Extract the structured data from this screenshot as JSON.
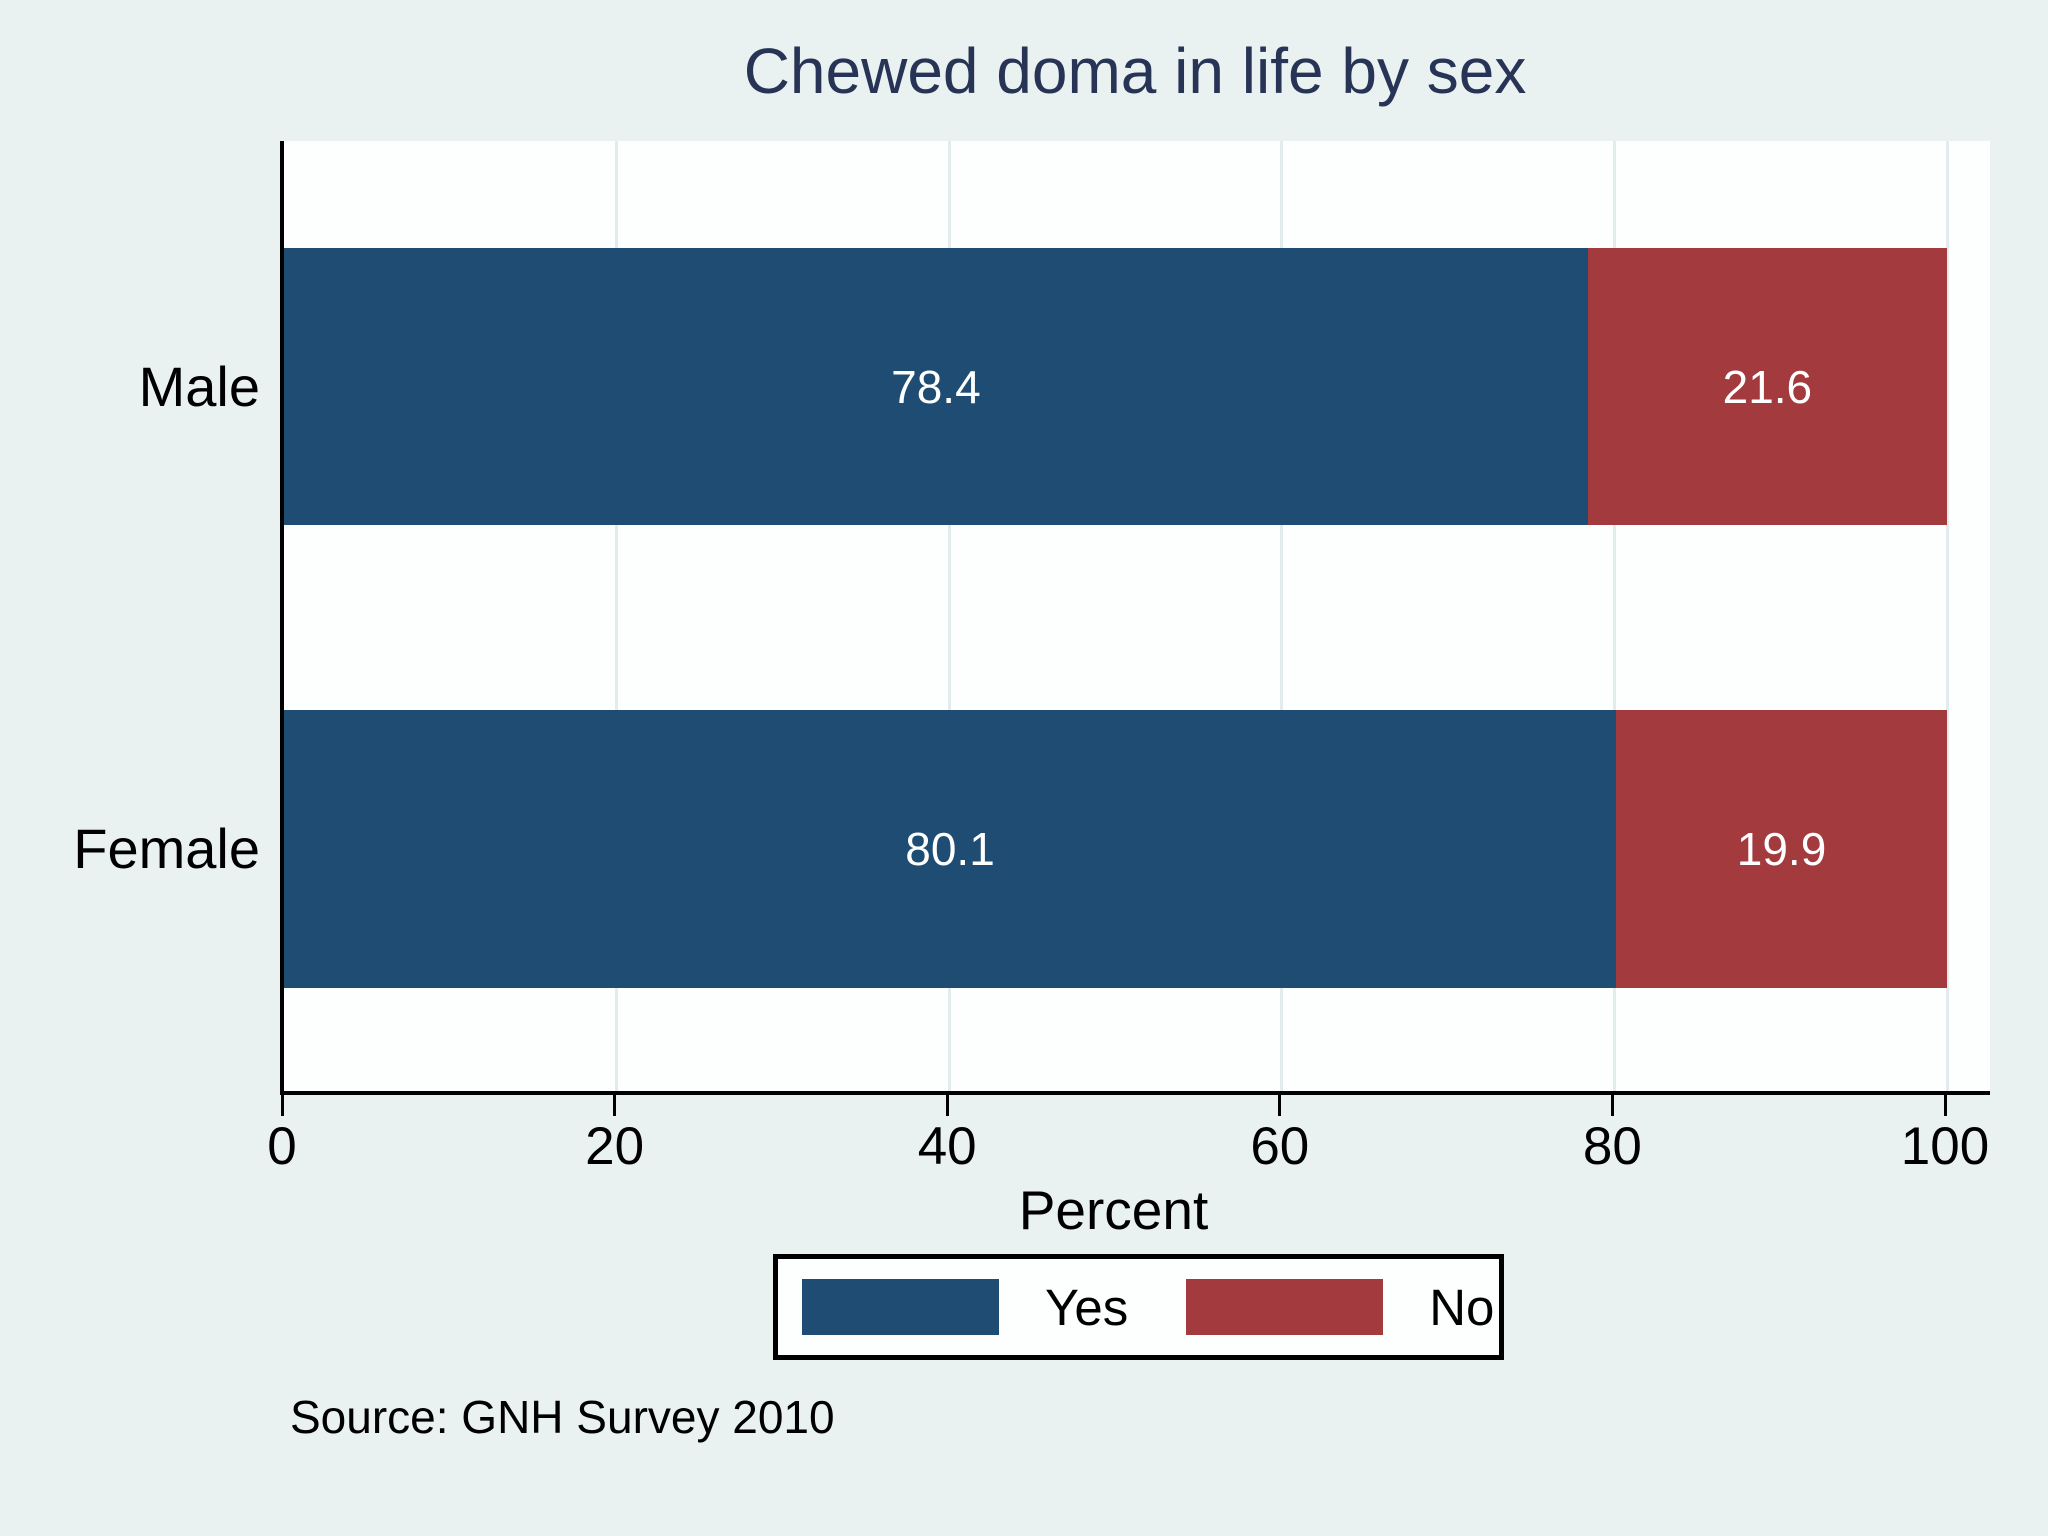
{
  "title": "Chewed doma in life by sex",
  "source_note": "Source: GNH Survey 2010",
  "colors": {
    "yes": "#1e4c72",
    "no": "#a23a3e",
    "background": "#e9f1f1",
    "plot_background": "#fdfefe",
    "title_text": "#283455",
    "gridline": "#e3ecec",
    "bar_label_text": "#ffffff",
    "axis_line": "#000000"
  },
  "chart_data": {
    "type": "bar",
    "orientation": "horizontal",
    "stacked": true,
    "title": "Chewed doma in life by sex",
    "categories": [
      "Male",
      "Female"
    ],
    "series": [
      {
        "name": "Yes",
        "values": [
          78.4,
          80.1
        ],
        "color": "#1e4c72"
      },
      {
        "name": "No",
        "values": [
          21.6,
          19.9
        ],
        "color": "#a23a3e"
      }
    ],
    "xlabel": "Percent",
    "ylabel": "",
    "xlim": [
      0,
      100
    ],
    "x_ticks": [
      0,
      20,
      40,
      60,
      80,
      100
    ],
    "grid": true,
    "bar_labels": true,
    "legend_position": "bottom"
  },
  "legend": {
    "yes_label": "Yes",
    "no_label": "No"
  }
}
